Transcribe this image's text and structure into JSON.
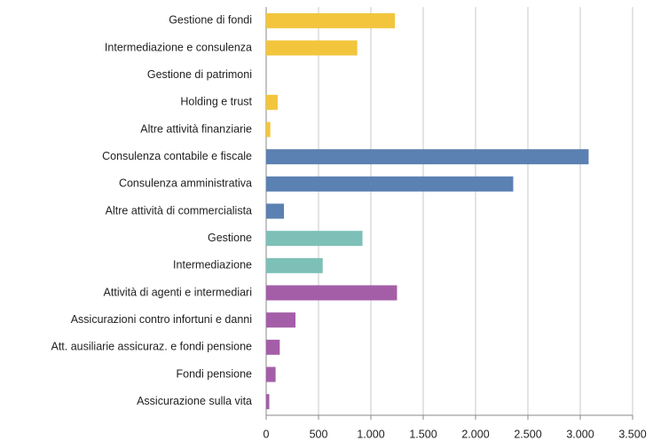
{
  "chart_data": {
    "type": "barh",
    "categories": [
      "Gestione di fondi",
      "Intermediazione e consulenza",
      "Gestione di patrimoni",
      "Holding e trust",
      "Altre attività finanziarie",
      "Consulenza contabile e fiscale",
      "Consulenza amministrativa",
      "Altre attività di commercialista",
      "Gestione",
      "Intermediazione",
      "Attività di agenti e intermediari",
      "Assicurazioni contro infortuni e danni",
      "Att. ausiliarie assicuraz. e fondi pensione",
      "Fondi pensione",
      "Assicurazione sulla vita"
    ],
    "values": [
      1230,
      870,
      0,
      110,
      40,
      3080,
      2360,
      170,
      920,
      540,
      1250,
      280,
      130,
      90,
      30
    ],
    "colors": [
      "#f2c53d",
      "#f2c53d",
      "#f2c53d",
      "#f2c53d",
      "#f2c53d",
      "#5b80b2",
      "#5b80b2",
      "#5b80b2",
      "#7dc0b8",
      "#7dc0b8",
      "#a45ea8",
      "#a45ea8",
      "#a45ea8",
      "#a45ea8",
      "#a45ea8"
    ],
    "xlim": [
      0,
      3500
    ],
    "xticks": [
      0,
      500,
      {
        "value": 1000,
        "label": "1.000"
      },
      {
        "value": 1500,
        "label": "1.500"
      },
      {
        "value": 2000,
        "label": "2.000"
      },
      {
        "value": 2500,
        "label": "2.500"
      },
      {
        "value": 3000,
        "label": "3.000"
      },
      {
        "value": 3500,
        "label": "3.500"
      }
    ],
    "grid": true
  }
}
